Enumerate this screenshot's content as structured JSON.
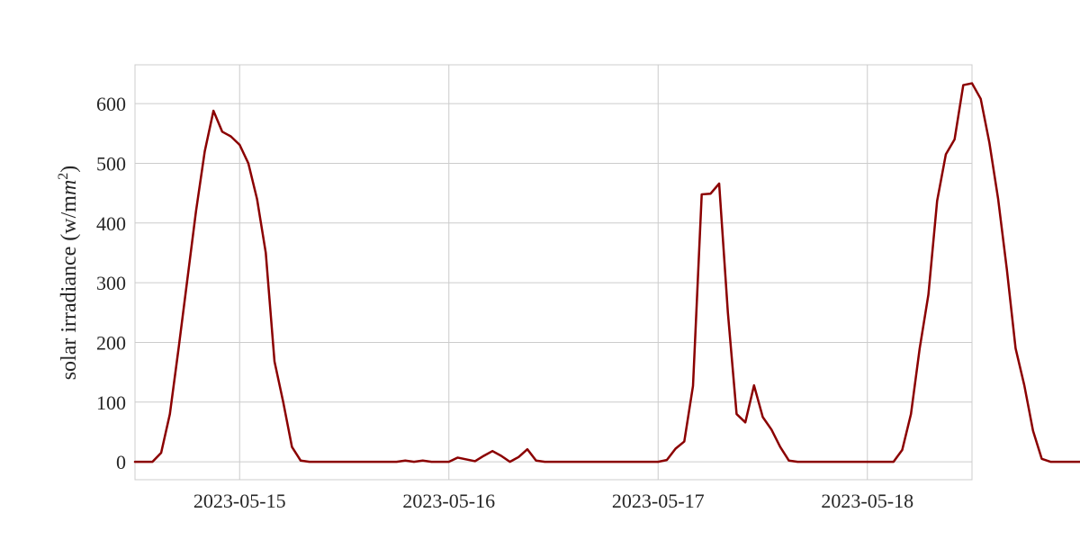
{
  "chart_data": {
    "type": "line",
    "title": "",
    "xlabel": "",
    "ylabel": "solar irradiance (w/mm²)",
    "ylabel_text": "solar irradiance (w/m",
    "ylabel_italic": "m",
    "ylabel_sup": "2",
    "ylabel_close": ")",
    "x_unit": "hour",
    "xlim": [
      "2023-05-14 12:00",
      "2023-05-18 12:00"
    ],
    "ylim": [
      -30,
      665
    ],
    "yticks": [
      0,
      100,
      200,
      300,
      400,
      500,
      600
    ],
    "xticks": [
      {
        "label": "2023-05-15",
        "t": "2023-05-15 00:00"
      },
      {
        "label": "2023-05-16",
        "t": "2023-05-16 00:00"
      },
      {
        "label": "2023-05-17",
        "t": "2023-05-17 00:00"
      },
      {
        "label": "2023-05-18",
        "t": "2023-05-18 00:00"
      }
    ],
    "grid": true,
    "series": [
      {
        "color": "#8b0000",
        "start": "2023-05-14 12:00",
        "step_hours": 1,
        "values": [
          0,
          0,
          0,
          15,
          80,
          190,
          305,
          420,
          520,
          588,
          553,
          545,
          531,
          500,
          440,
          350,
          168,
          100,
          25,
          2,
          0,
          0,
          0,
          0,
          0,
          0,
          0,
          0,
          0,
          0,
          0,
          2,
          0,
          2,
          0,
          0,
          0,
          7,
          4,
          1,
          10,
          18,
          10,
          0,
          8,
          21,
          2,
          0,
          0,
          0,
          0,
          0,
          0,
          0,
          0,
          0,
          0,
          0,
          0,
          0,
          0,
          3,
          22,
          34,
          127,
          448,
          449,
          466,
          250,
          80,
          66,
          128,
          75,
          54,
          25,
          2,
          0,
          0,
          0,
          0,
          0,
          0,
          0,
          0,
          0,
          0,
          0,
          0,
          20,
          80,
          190,
          280,
          437,
          515,
          540,
          631,
          634,
          608,
          534,
          440,
          322,
          190,
          128,
          52,
          5,
          0,
          0,
          0,
          0,
          0
        ]
      }
    ]
  }
}
